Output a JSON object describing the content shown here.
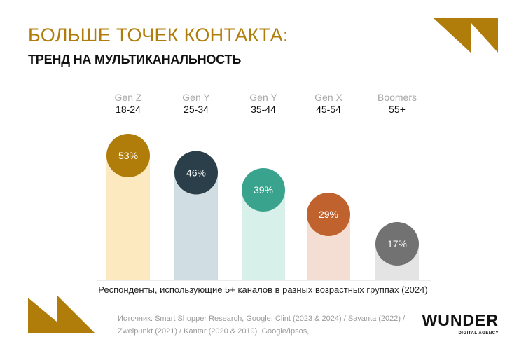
{
  "header": {
    "title": "БОЛЬШЕ ТОЧЕК КОНТАКТА:",
    "subtitle": "ТРЕНД НА МУЛЬТИКАНАЛЬНОСТЬ"
  },
  "chart_data": {
    "type": "bar",
    "categories": [
      {
        "generation": "Gen Z",
        "age": "18-24"
      },
      {
        "generation": "Gen Y",
        "age": "25-34"
      },
      {
        "generation": "Gen Y",
        "age": "35-44"
      },
      {
        "generation": "Gen X",
        "age": "45-54"
      },
      {
        "generation": "Boomers",
        "age": "55+"
      }
    ],
    "values": [
      53,
      46,
      39,
      29,
      17
    ],
    "labels": [
      "53%",
      "46%",
      "39%",
      "29%",
      "17%"
    ],
    "circle_colors": [
      "#b07d0a",
      "#2a3f4a",
      "#3aa38e",
      "#c0622e",
      "#727272"
    ],
    "bar_colors": [
      "#fde9bf",
      "#d0dde3",
      "#d7f0ea",
      "#f4ddd3",
      "#e4e4e4"
    ],
    "caption": "Респонденты, использующие 5+ каналов в разных возрастных группах (2024)"
  },
  "footer": {
    "source": "Источник: Smart Shopper Research, Google, Clint (2023 & 2024) / Savanta (2022) / Zweipunkt (2021) / Kantar (2020 & 2019). Google/Ipsos,",
    "logo_main": "WUNDER",
    "logo_sub": "DIGITAL AGENCY"
  },
  "colors": {
    "accent": "#b07d0a"
  }
}
